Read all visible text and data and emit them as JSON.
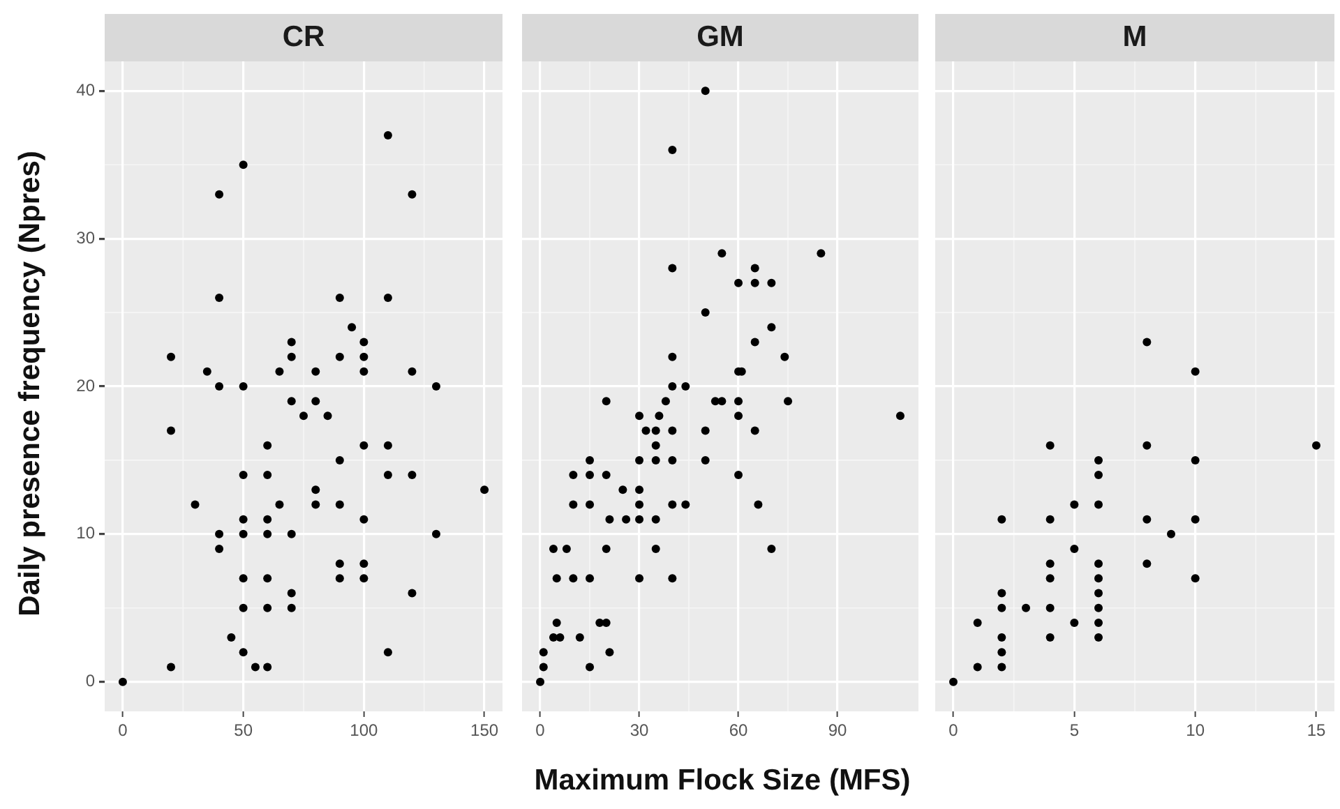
{
  "chart_data": [
    {
      "type": "scatter",
      "title": "CR",
      "ylabel": "Daily presence frequency (Npres)",
      "color": "#000000",
      "marker": "circle",
      "grid": true,
      "x": [
        110,
        50,
        40,
        120,
        40,
        90,
        110,
        95,
        70,
        100,
        20,
        70,
        90,
        100,
        35,
        65,
        80,
        100,
        120,
        40,
        50,
        130,
        70,
        80,
        75,
        85,
        20,
        60,
        100,
        110,
        90,
        50,
        60,
        110,
        120,
        80,
        150,
        30,
        65,
        80,
        90,
        50,
        60,
        100,
        40,
        50,
        60,
        70,
        130,
        40,
        90,
        100,
        50,
        60,
        90,
        100,
        70,
        120,
        50,
        60,
        70,
        45,
        50,
        110,
        20,
        55,
        60,
        0
      ],
      "values": [
        37,
        35,
        33,
        33,
        26,
        26,
        26,
        24,
        23,
        23,
        22,
        22,
        22,
        22,
        21,
        21,
        21,
        21,
        21,
        20,
        20,
        20,
        19,
        19,
        18,
        18,
        17,
        16,
        16,
        16,
        15,
        14,
        14,
        14,
        14,
        13,
        13,
        12,
        12,
        12,
        12,
        11,
        11,
        11,
        10,
        10,
        10,
        10,
        10,
        9,
        8,
        8,
        7,
        7,
        7,
        7,
        6,
        6,
        5,
        5,
        5,
        3,
        2,
        2,
        1,
        1,
        1,
        0
      ],
      "xlim": [
        -7.5,
        157.5
      ],
      "ylim": [
        -2,
        42
      ],
      "xticks": [
        0,
        50,
        100,
        150
      ],
      "yticks": [
        0,
        10,
        20,
        30,
        40
      ]
    },
    {
      "type": "scatter",
      "title": "GM",
      "xlabel": "Maximum Flock Size (MFS)",
      "color": "#000000",
      "marker": "circle",
      "grid": true,
      "tick_labels": "x",
      "x": [
        50,
        40,
        55,
        85,
        40,
        65,
        60,
        65,
        70,
        50,
        70,
        65,
        40,
        74,
        60,
        61,
        40,
        44,
        20,
        38,
        53,
        55,
        60,
        75,
        30,
        36,
        60,
        109,
        32,
        35,
        40,
        50,
        65,
        35,
        15,
        30,
        35,
        40,
        50,
        10,
        15,
        20,
        60,
        25,
        30,
        10,
        15,
        30,
        40,
        44,
        66,
        21,
        26,
        30,
        35,
        4,
        8,
        20,
        35,
        70,
        5,
        10,
        15,
        30,
        40,
        5,
        18,
        20,
        4,
        6,
        12,
        1,
        21,
        1,
        15,
        0
      ],
      "values": [
        40,
        36,
        29,
        29,
        28,
        28,
        27,
        27,
        27,
        25,
        24,
        23,
        22,
        22,
        21,
        21,
        20,
        20,
        19,
        19,
        19,
        19,
        19,
        19,
        18,
        18,
        18,
        18,
        17,
        17,
        17,
        17,
        17,
        16,
        15,
        15,
        15,
        15,
        15,
        14,
        14,
        14,
        14,
        13,
        13,
        12,
        12,
        12,
        12,
        12,
        12,
        11,
        11,
        11,
        11,
        9,
        9,
        9,
        9,
        9,
        7,
        7,
        7,
        7,
        7,
        4,
        4,
        4,
        3,
        3,
        3,
        2,
        2,
        1,
        1,
        0
      ],
      "xlim": [
        -5.5,
        114.5
      ],
      "ylim": [
        -2,
        42
      ],
      "xticks": [
        0,
        30,
        60,
        90
      ],
      "yticks": [
        0,
        10,
        20,
        30,
        40
      ]
    },
    {
      "type": "scatter",
      "title": "M",
      "color": "#000000",
      "marker": "circle",
      "grid": true,
      "tick_labels": "x",
      "x": [
        8,
        10,
        4,
        8,
        15,
        6,
        10,
        6,
        5,
        6,
        2,
        4,
        8,
        10,
        9,
        5,
        4,
        6,
        8,
        4,
        6,
        10,
        2,
        6,
        2,
        3,
        4,
        6,
        1,
        5,
        6,
        2,
        4,
        6,
        2,
        1,
        2,
        0
      ],
      "values": [
        23,
        21,
        16,
        16,
        16,
        15,
        15,
        14,
        12,
        12,
        11,
        11,
        11,
        11,
        10,
        9,
        8,
        8,
        8,
        7,
        7,
        7,
        6,
        6,
        5,
        5,
        5,
        5,
        4,
        4,
        4,
        3,
        3,
        3,
        2,
        1,
        1,
        0
      ],
      "xlim": [
        -0.75,
        15.75
      ],
      "ylim": [
        -2,
        42
      ],
      "xticks": [
        0,
        5,
        10,
        15
      ],
      "yticks": [
        0,
        10,
        20,
        30,
        40
      ]
    }
  ]
}
